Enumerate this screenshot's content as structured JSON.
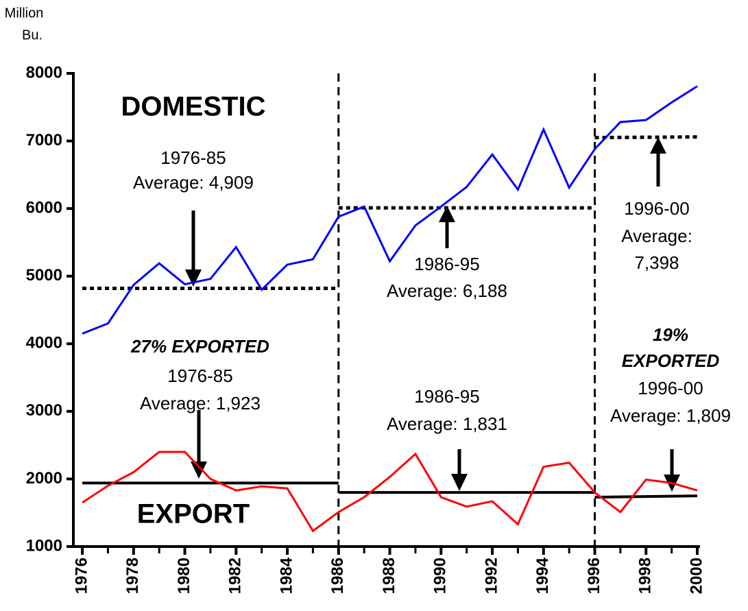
{
  "chart_data": {
    "type": "line",
    "ylabel": [
      "Million",
      "Bu."
    ],
    "x": [
      1976,
      1977,
      1978,
      1979,
      1980,
      1981,
      1982,
      1983,
      1984,
      1985,
      1986,
      1987,
      1988,
      1989,
      1990,
      1991,
      1992,
      1993,
      1994,
      1995,
      1996,
      1997,
      1998,
      1999,
      2000
    ],
    "series": [
      {
        "name": "DOMESTIC",
        "color": "#0000ff",
        "values": [
          4150,
          4300,
          4870,
          5190,
          4880,
          4960,
          5430,
          4800,
          5170,
          5250,
          5880,
          6030,
          5220,
          5750,
          6030,
          6320,
          6800,
          6280,
          7170,
          6310,
          6880,
          7280,
          7310,
          7570,
          7810
        ]
      },
      {
        "name": "EXPORT",
        "color": "#ff0000",
        "values": [
          1650,
          1900,
          2100,
          2400,
          2400,
          2000,
          1830,
          1890,
          1860,
          1230,
          1510,
          1730,
          2030,
          2370,
          1730,
          1590,
          1670,
          1330,
          2180,
          2240,
          1800,
          1510,
          1990,
          1940,
          1830
        ]
      }
    ],
    "reference_lines": [
      {
        "x": [
          1976,
          1986
        ],
        "values": [
          4820,
          4820
        ],
        "style": "dotted"
      },
      {
        "x": [
          1986,
          1996
        ],
        "values": [
          6010,
          6010
        ],
        "style": "dotted"
      },
      {
        "x": [
          1996,
          2000
        ],
        "values": [
          7050,
          7060
        ],
        "style": "dotted"
      },
      {
        "x": [
          1976,
          1986
        ],
        "values": [
          1940,
          1940
        ],
        "style": "solid"
      },
      {
        "x": [
          1986,
          1996
        ],
        "values": [
          1800,
          1800
        ],
        "style": "solid"
      },
      {
        "x": [
          1996,
          2000
        ],
        "values": [
          1730,
          1750
        ],
        "style": "solid"
      }
    ],
    "dividers": [
      1986,
      1996
    ],
    "annotations": [
      "DOMESTIC",
      "1976-85",
      "Average: 4,909",
      "1986-95",
      "Average: 6,188",
      "1996-00",
      "Average:",
      "7,398",
      "27% EXPORTED",
      "1976-85",
      "Average: 1,923",
      "1986-95",
      "Average: 1,831",
      "19%",
      "EXPORTED",
      "1996-00",
      "Average: 1,809",
      "EXPORT"
    ],
    "xlim": [
      1975.65,
      2000
    ],
    "xticks": [
      1976,
      1978,
      1980,
      1982,
      1984,
      1986,
      1988,
      1990,
      1992,
      1994,
      1996,
      1998,
      2000
    ],
    "ylim": [
      1000,
      8000
    ],
    "yticks": [
      1000,
      2000,
      3000,
      4000,
      5000,
      6000,
      7000,
      8000
    ]
  }
}
